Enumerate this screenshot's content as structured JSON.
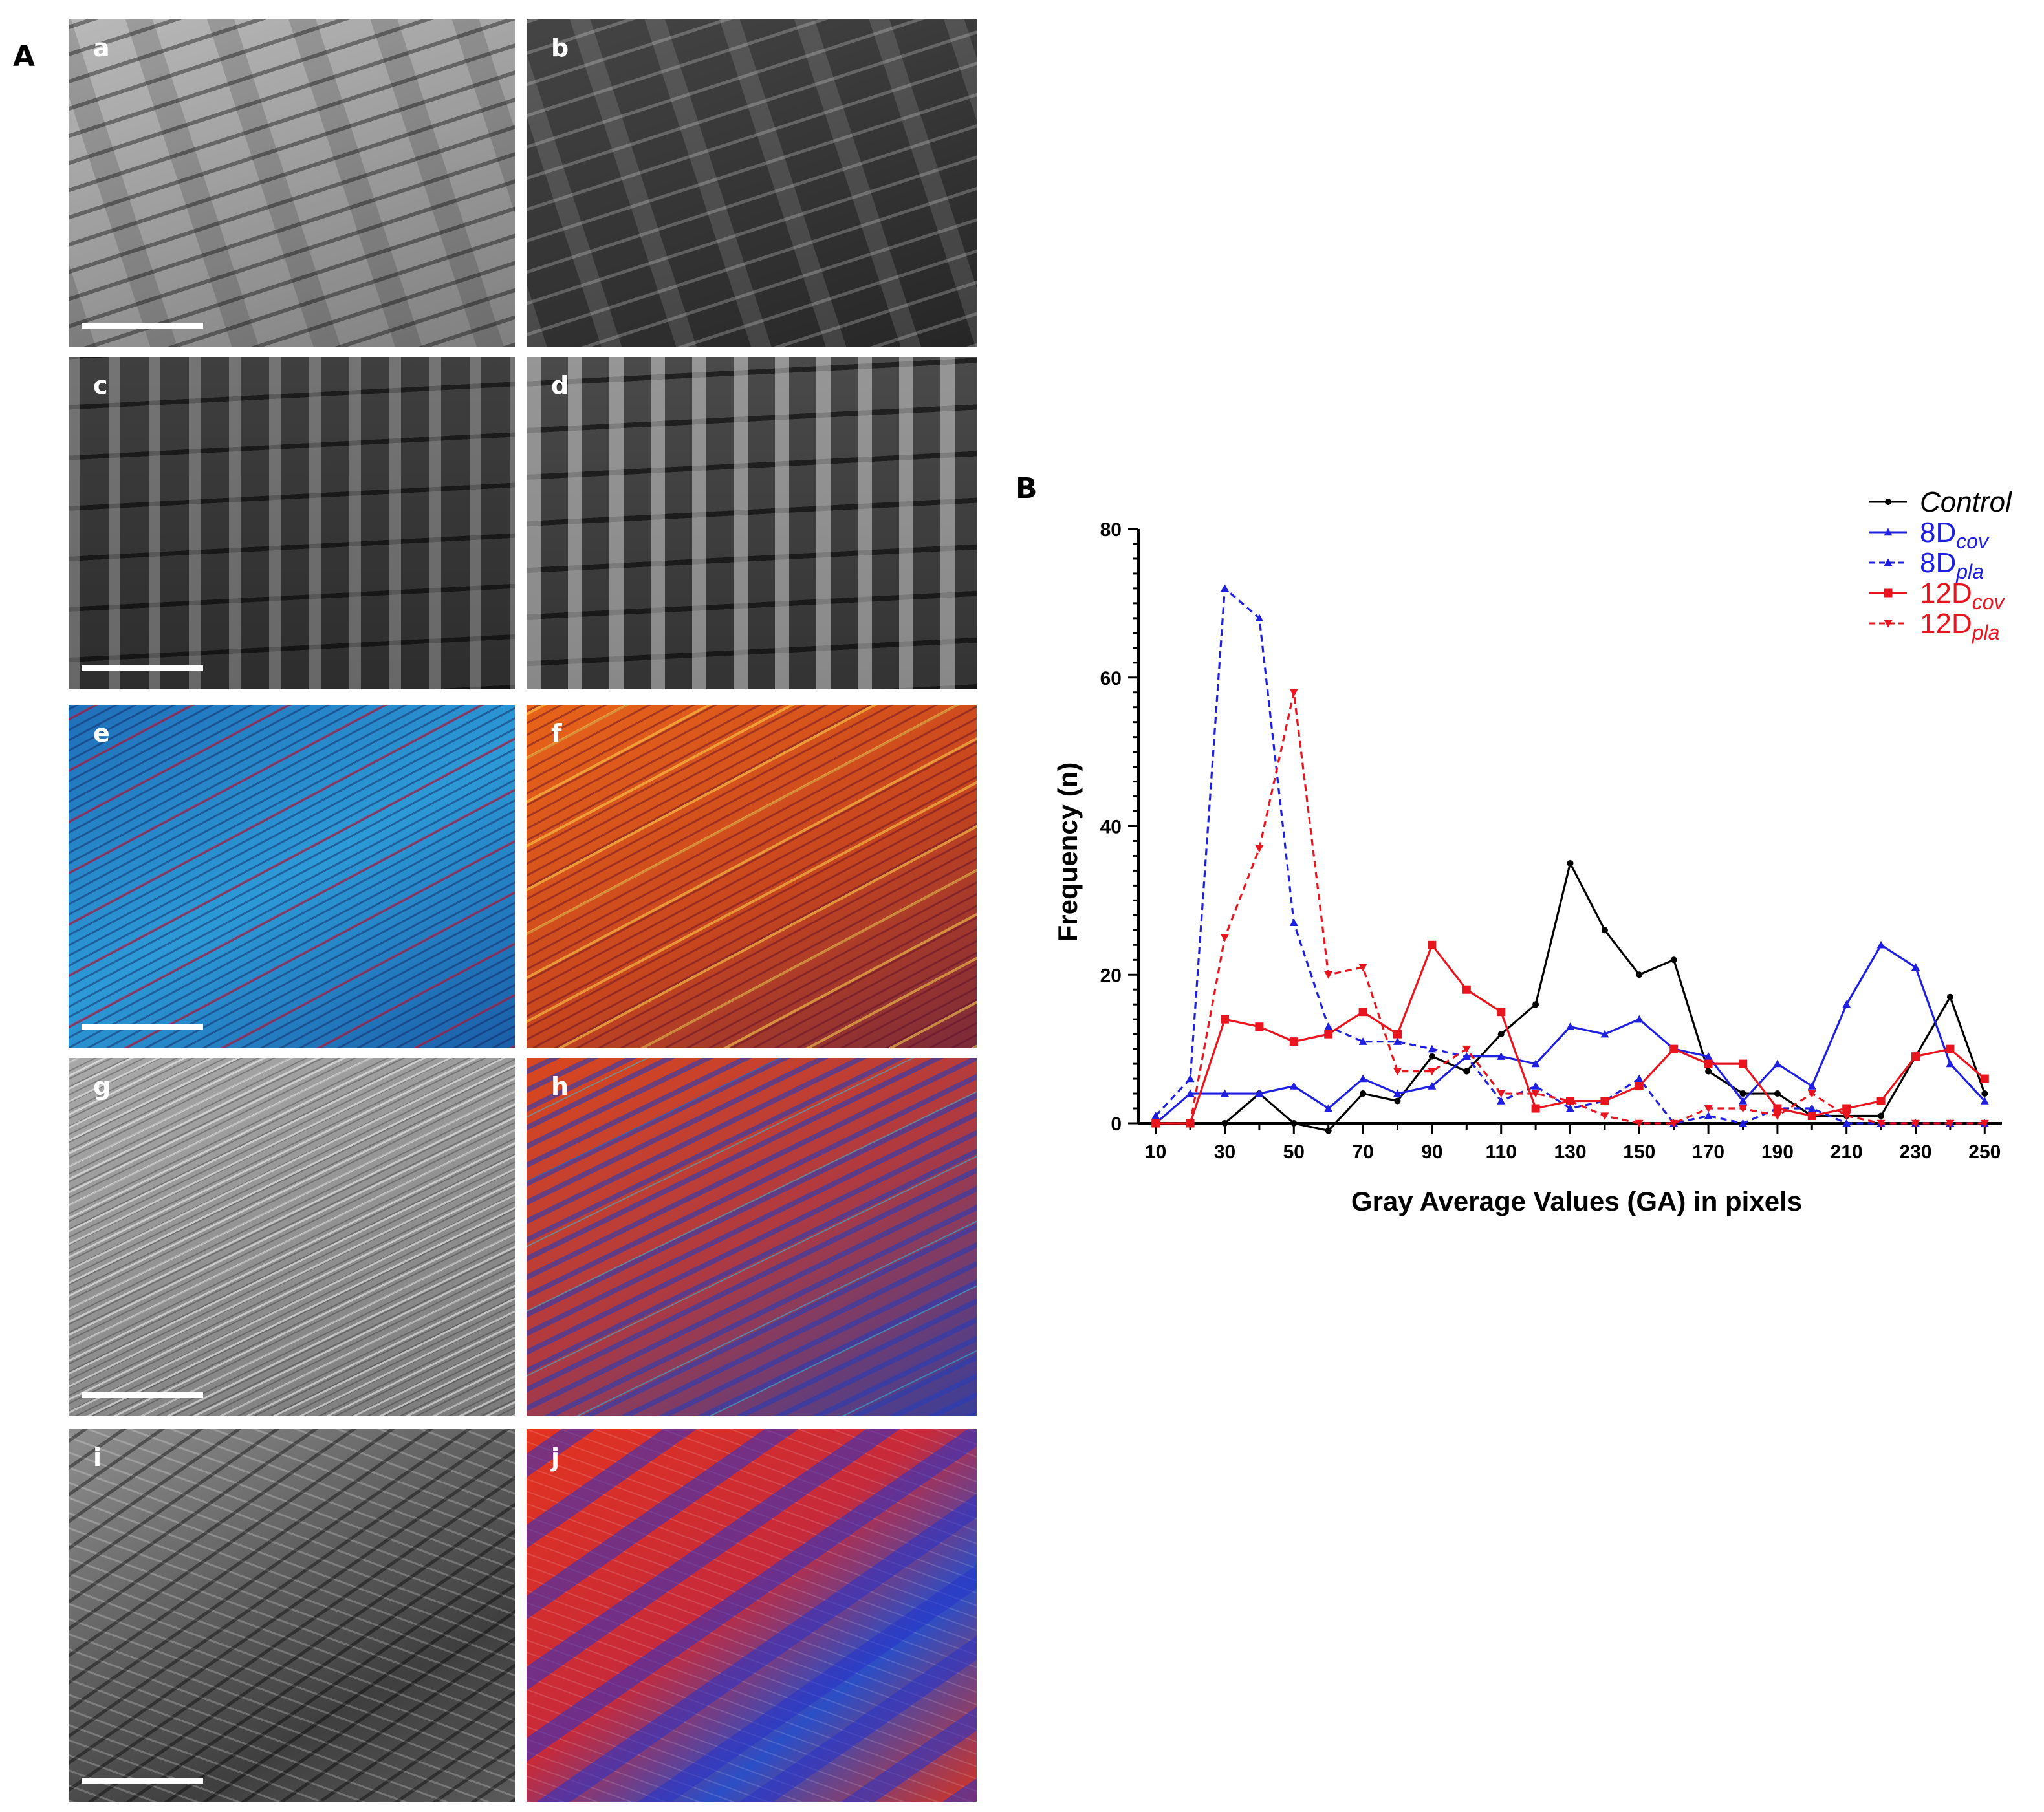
{
  "figure": {
    "panel_a_label": "A",
    "panel_b_label": "B",
    "micrographs": [
      {
        "label": "a"
      },
      {
        "label": "b"
      },
      {
        "label": "c"
      },
      {
        "label": "d"
      },
      {
        "label": "e"
      },
      {
        "label": "f"
      },
      {
        "label": "g"
      },
      {
        "label": "h"
      },
      {
        "label": "i"
      },
      {
        "label": "j"
      }
    ]
  },
  "colors": {
    "control": "#000000",
    "d8": "#1f1fe0",
    "d12": "#e8141e"
  },
  "chart_data": {
    "type": "line",
    "xlabel": "Gray Average Values  (GA) in pixels",
    "ylabel": "Frequency (n)",
    "xlim": [
      10,
      250
    ],
    "ylim": [
      0,
      80
    ],
    "x_ticks": [
      10,
      30,
      50,
      70,
      90,
      110,
      130,
      150,
      170,
      190,
      210,
      230,
      250
    ],
    "y_ticks": [
      0,
      20,
      40,
      60,
      80
    ],
    "x": [
      10,
      20,
      30,
      40,
      50,
      60,
      70,
      80,
      90,
      100,
      110,
      120,
      130,
      140,
      150,
      160,
      170,
      180,
      190,
      200,
      210,
      220,
      230,
      240,
      250
    ],
    "legend_position": "top-right",
    "series": [
      {
        "name": "Control",
        "base": "Control",
        "sub": "",
        "italic": true,
        "color": "#000000",
        "dashed": false,
        "marker": "circle",
        "values": [
          0,
          0,
          0,
          4,
          0,
          -1,
          4,
          3,
          9,
          7,
          12,
          16,
          35,
          26,
          20,
          22,
          7,
          4,
          4,
          1,
          1,
          1,
          9,
          17,
          4
        ]
      },
      {
        "name": "8Dcov",
        "base": "8D",
        "sub": "cov",
        "italic": false,
        "color": "#1f1fe0",
        "dashed": false,
        "marker": "triangle",
        "values": [
          0,
          4,
          4,
          4,
          5,
          2,
          6,
          4,
          5,
          9,
          9,
          8,
          13,
          12,
          14,
          10,
          9,
          3,
          8,
          5,
          16,
          24,
          21,
          8,
          3
        ]
      },
      {
        "name": "8Dpla",
        "base": "8D",
        "sub": "pla",
        "italic": false,
        "color": "#1f1fe0",
        "dashed": true,
        "marker": "triangle",
        "values": [
          1,
          6,
          72,
          68,
          27,
          13,
          11,
          11,
          10,
          9,
          3,
          5,
          2,
          3,
          6,
          0,
          1,
          0,
          2,
          2,
          0,
          0,
          0,
          0,
          0
        ]
      },
      {
        "name": "12Dcov",
        "base": "12D",
        "sub": "cov",
        "italic": false,
        "color": "#e8141e",
        "dashed": false,
        "marker": "square",
        "values": [
          0,
          0,
          14,
          13,
          11,
          12,
          15,
          12,
          24,
          18,
          15,
          2,
          3,
          3,
          5,
          10,
          8,
          8,
          2,
          1,
          2,
          3,
          9,
          10,
          6
        ]
      },
      {
        "name": "12Dpla",
        "base": "12D",
        "sub": "pla",
        "italic": false,
        "color": "#e8141e",
        "dashed": true,
        "marker": "triangle-down",
        "values": [
          0,
          0,
          25,
          37,
          58,
          20,
          21,
          7,
          7,
          10,
          4,
          4,
          3,
          1,
          0,
          0,
          2,
          2,
          1,
          4,
          1,
          0,
          0,
          0,
          0
        ]
      }
    ]
  }
}
